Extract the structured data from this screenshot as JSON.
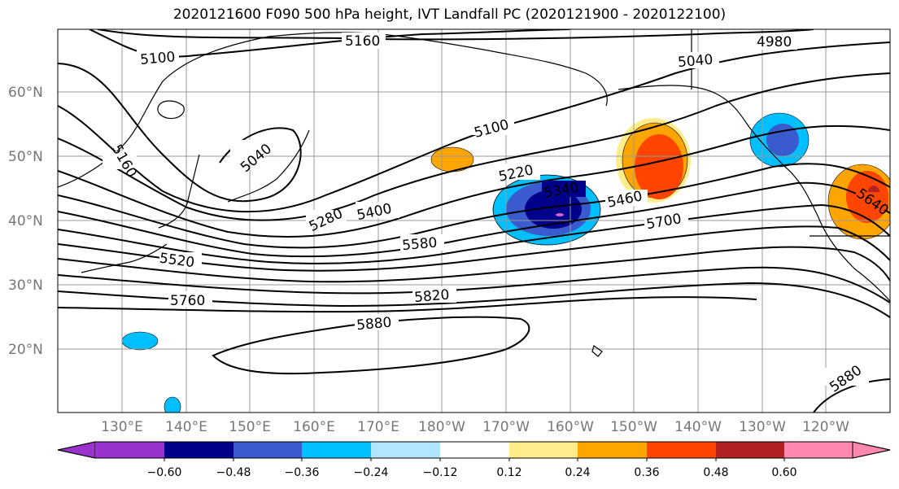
{
  "title": "2020121600 F090 500 hPa height, IVT Landfall PC (2020121900 - 2020122100)",
  "lat_labels": [
    "60°N",
    "50°N",
    "40°N",
    "30°N",
    "20°N"
  ],
  "lon_labels": [
    "130°E",
    "140°E",
    "150°E",
    "160°E",
    "170°E",
    "180°W",
    "170°W",
    "160°W",
    "150°W",
    "140°W",
    "130°W",
    "120°W"
  ],
  "contour_labels": [
    "5100",
    "5160",
    "4980",
    "5040",
    "5040",
    "5160",
    "5100",
    "5220",
    "5340",
    "5460",
    "5280",
    "5400",
    "5580",
    "5700",
    "5520",
    "5640",
    "5760",
    "5820",
    "5880",
    "5880"
  ],
  "colorbar": {
    "ticks": [
      "−0.60",
      "−0.48",
      "−0.36",
      "−0.24",
      "−0.12",
      "0.12",
      "0.24",
      "0.36",
      "0.48",
      "0.60"
    ],
    "colors": [
      "#9a32cd",
      "#00008b",
      "#3a5bcd",
      "#00bfff",
      "#b2e5ff",
      "#ffffff",
      "#ffec8b",
      "#ffa500",
      "#ff4500",
      "#b22222",
      "#ff87b0"
    ]
  }
}
